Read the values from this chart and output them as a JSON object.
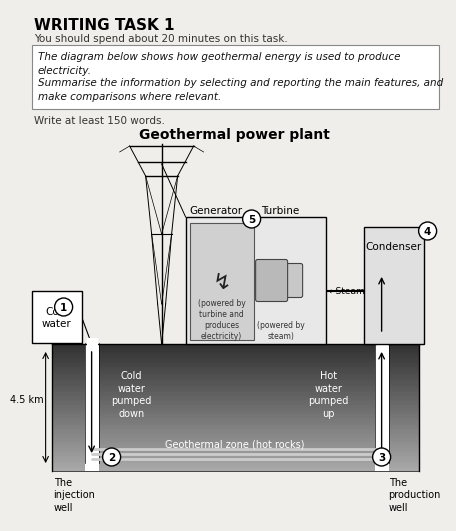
{
  "title_main": "WRITING TASK 1",
  "subtitle": "You should spend about 20 minutes on this task.",
  "italic_text1": "The diagram below shows how geothermal energy is used to produce",
  "italic_text2": "electricity.",
  "italic_text3": "Summarise the information by selecting and reporting the main features, and",
  "italic_text4": "make comparisons where relevant.",
  "write_note": "Write at least 150 words.",
  "diagram_title": "Geothermal power plant",
  "label_generator": "Generator",
  "label_turbine": "Turbine",
  "label_steam": "←Steam",
  "label_condenser": "Condenser",
  "label_cold_water": "Cold\nwater",
  "label_cold_down": "Cold\nwater\npumped\ndown",
  "label_hot_up": "Hot\nwater\npumped\nup",
  "label_geo_zone": "Geothermal zone (hot rocks)",
  "label_injection": "The\ninjection\nwell",
  "label_production": "The\nproduction\nwell",
  "label_depth": "4.5 km",
  "label_powered_gen": "(powered by\nturbine and\nproduces\nelectricity)",
  "label_powered_turb": "(powered by\nsteam)",
  "bg_color": "#f0eeeb"
}
